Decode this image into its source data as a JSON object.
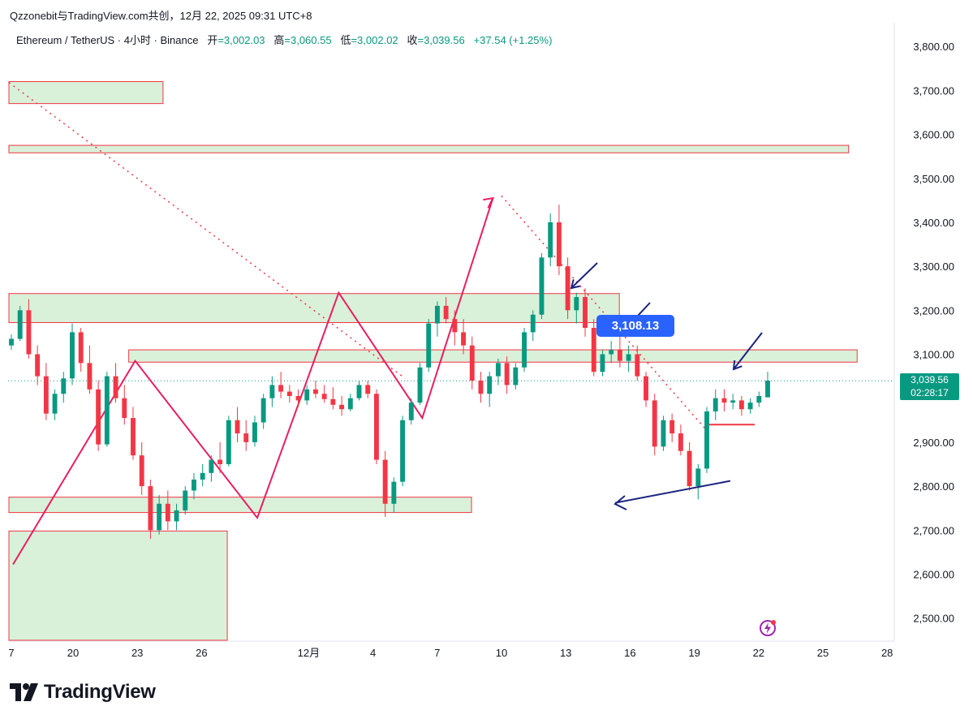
{
  "header": {
    "publisher_line": "Qzzonebit与TradingView.com共创，12月 22, 2025 09:31 UTC+8"
  },
  "legend": {
    "symbol": "Ethereum / TetherUS · 4小时 · Binance",
    "open_label": "开",
    "open_value": "=3,002.03",
    "high_label": "高",
    "high_value": "=3,060.55",
    "low_label": "低",
    "low_value": "=3,002.02",
    "close_label": "收",
    "close_value": "=3,039.56",
    "change": "+37.54 (+1.25%)"
  },
  "price_tag": {
    "price": "3,039.56",
    "countdown": "02:28:17",
    "color": "#089981"
  },
  "callout": {
    "text": "3,108.13",
    "color": "#2962ff"
  },
  "brand": {
    "name": "TradingView"
  },
  "colors": {
    "up": "#089981",
    "down": "#f23645",
    "zone_fill": "#d9f0d9",
    "zone_border": "#f23645",
    "pattern_line": "#e91e63",
    "arrow": "#1a237e"
  },
  "chart_data": {
    "type": "candlestick",
    "title": "Ethereum / TetherUS · 4小时 · Binance",
    "y_axis": {
      "ticks": [
        "3,800.00",
        "3,700.00",
        "3,600.00",
        "3,500.00",
        "3,400.00",
        "3,300.00",
        "3,200.00",
        "3,100.00",
        "2,900.00",
        "2,800.00",
        "2,700.00",
        "2,600.00",
        "2,500.00"
      ],
      "tick_values": [
        3800,
        3700,
        3600,
        3500,
        3400,
        3300,
        3200,
        3100,
        2900,
        2800,
        2700,
        2600,
        2500
      ],
      "range": [
        2450,
        3850
      ]
    },
    "x_axis": {
      "ticks": [
        "7",
        "20",
        "23",
        "26",
        "12月",
        "4",
        "7",
        "10",
        "13",
        "16",
        "19",
        "22",
        "25",
        "28"
      ],
      "tick_day_index": [
        -13,
        0,
        3,
        6,
        11,
        14,
        17,
        20,
        23,
        26,
        29,
        32,
        35,
        38
      ]
    },
    "last_price": 3039.56,
    "zones": [
      {
        "low": 3670,
        "high": 3720,
        "start_day": -14,
        "end_day": 4.2
      },
      {
        "low": 3558,
        "high": 3575,
        "start_day": -14,
        "end_day": 36.2
      },
      {
        "low": 3172,
        "high": 3238,
        "start_day": -14,
        "end_day": 25.5
      },
      {
        "low": 3082,
        "high": 3110,
        "start_day": 2.6,
        "end_day": 36.6
      },
      {
        "low": 2740,
        "high": 2775,
        "start_day": -14,
        "end_day": 18.6
      },
      {
        "low": 2380,
        "high": 2698,
        "start_day": -14,
        "end_day": 7.2
      }
    ],
    "zigzag": [
      {
        "day": -2.8,
        "price": 2622
      },
      {
        "day": 2.9,
        "price": 3085
      },
      {
        "day": 8.6,
        "price": 2728
      },
      {
        "day": 12.4,
        "price": 3240
      },
      {
        "day": 16.3,
        "price": 2955
      },
      {
        "day": 19.6,
        "price": 3455
      }
    ],
    "trendlines": [
      {
        "from_day": -14,
        "from_price": 3718,
        "to_day": 15.5,
        "to_price": 3045
      },
      {
        "from_day": 20.0,
        "from_price": 3460,
        "to_day": 29.7,
        "to_price": 2920
      }
    ],
    "support_line": {
      "from_day": 28.9,
      "from_price": 2812,
      "to_day": 27.4,
      "to_price": 2762
    },
    "candles": [
      [
        3120,
        3145,
        3110,
        3135
      ],
      [
        3135,
        3210,
        3130,
        3200
      ],
      [
        3200,
        3225,
        3090,
        3100
      ],
      [
        3100,
        3120,
        3030,
        3050
      ],
      [
        3050,
        3080,
        2950,
        2965
      ],
      [
        2965,
        3020,
        2950,
        3010
      ],
      [
        3010,
        3060,
        2990,
        3045
      ],
      [
        3045,
        3170,
        3030,
        3150
      ],
      [
        3150,
        3160,
        3060,
        3080
      ],
      [
        3080,
        3120,
        3010,
        3020
      ],
      [
        3020,
        3040,
        2880,
        2895
      ],
      [
        2895,
        3060,
        2890,
        3050
      ],
      [
        3050,
        3080,
        2990,
        3000
      ],
      [
        3000,
        3030,
        2940,
        2955
      ],
      [
        2955,
        2980,
        2860,
        2870
      ],
      [
        2870,
        2900,
        2780,
        2800
      ],
      [
        2800,
        2815,
        2680,
        2700
      ],
      [
        2700,
        2780,
        2690,
        2760
      ],
      [
        2760,
        2790,
        2700,
        2720
      ],
      [
        2720,
        2760,
        2700,
        2745
      ],
      [
        2745,
        2800,
        2735,
        2790
      ],
      [
        2790,
        2830,
        2770,
        2815
      ],
      [
        2815,
        2850,
        2800,
        2830
      ],
      [
        2830,
        2870,
        2810,
        2860
      ],
      [
        2860,
        2900,
        2830,
        2850
      ],
      [
        2850,
        2960,
        2845,
        2950
      ],
      [
        2950,
        2980,
        2900,
        2920
      ],
      [
        2920,
        2950,
        2880,
        2900
      ],
      [
        2900,
        2960,
        2890,
        2945
      ],
      [
        2945,
        3010,
        2930,
        3000
      ],
      [
        3000,
        3050,
        2980,
        3030
      ],
      [
        3030,
        3060,
        3000,
        3015
      ],
      [
        3015,
        3030,
        2990,
        3005
      ],
      [
        3005,
        3020,
        2980,
        2995
      ],
      [
        2995,
        3030,
        2985,
        3020
      ],
      [
        3020,
        3040,
        3000,
        3010
      ],
      [
        3010,
        3030,
        2990,
        2998
      ],
      [
        2998,
        3025,
        2975,
        2985
      ],
      [
        2985,
        3005,
        2960,
        2975
      ],
      [
        2975,
        3010,
        2970,
        3000
      ],
      [
        3000,
        3040,
        2995,
        3030
      ],
      [
        3030,
        3040,
        3000,
        3010
      ],
      [
        3010,
        3020,
        2850,
        2860
      ],
      [
        2860,
        2880,
        2730,
        2760
      ],
      [
        2760,
        2820,
        2740,
        2810
      ],
      [
        2810,
        2960,
        2800,
        2950
      ],
      [
        2950,
        3000,
        2940,
        2990
      ],
      [
        2990,
        3080,
        2985,
        3070
      ],
      [
        3070,
        3180,
        3060,
        3170
      ],
      [
        3170,
        3220,
        3140,
        3210
      ],
      [
        3210,
        3230,
        3170,
        3180
      ],
      [
        3180,
        3200,
        3120,
        3150
      ],
      [
        3150,
        3180,
        3100,
        3120
      ],
      [
        3120,
        3140,
        3020,
        3040
      ],
      [
        3040,
        3060,
        2990,
        3010
      ],
      [
        3010,
        3060,
        2980,
        3050
      ],
      [
        3050,
        3090,
        3030,
        3080
      ],
      [
        3080,
        3095,
        3010,
        3030
      ],
      [
        3030,
        3080,
        3020,
        3070
      ],
      [
        3070,
        3160,
        3060,
        3150
      ],
      [
        3150,
        3200,
        3130,
        3190
      ],
      [
        3190,
        3330,
        3180,
        3320
      ],
      [
        3320,
        3420,
        3300,
        3400
      ],
      [
        3400,
        3440,
        3280,
        3300
      ],
      [
        3300,
        3320,
        3180,
        3200
      ],
      [
        3200,
        3240,
        3170,
        3230
      ],
      [
        3230,
        3250,
        3140,
        3160
      ],
      [
        3160,
        3180,
        3050,
        3060
      ],
      [
        3060,
        3110,
        3050,
        3100
      ],
      [
        3100,
        3130,
        3080,
        3110
      ],
      [
        3110,
        3140,
        3070,
        3085
      ],
      [
        3085,
        3120,
        3060,
        3100
      ],
      [
        3100,
        3120,
        3040,
        3050
      ],
      [
        3050,
        3060,
        2980,
        2995
      ],
      [
        2995,
        3010,
        2870,
        2890
      ],
      [
        2890,
        2960,
        2880,
        2950
      ],
      [
        2950,
        2965,
        2900,
        2920
      ],
      [
        2920,
        2940,
        2870,
        2880
      ],
      [
        2880,
        2900,
        2790,
        2800
      ],
      [
        2800,
        2850,
        2770,
        2840
      ],
      [
        2840,
        2980,
        2830,
        2970
      ],
      [
        2970,
        3020,
        2950,
        3000
      ],
      [
        3000,
        3020,
        2970,
        2990
      ],
      [
        2990,
        3010,
        2975,
        2995
      ],
      [
        2995,
        3005,
        2960,
        2975
      ],
      [
        2975,
        3000,
        2965,
        2990
      ],
      [
        2990,
        3015,
        2980,
        3005
      ],
      [
        3002,
        3060,
        3002,
        3040
      ]
    ]
  }
}
